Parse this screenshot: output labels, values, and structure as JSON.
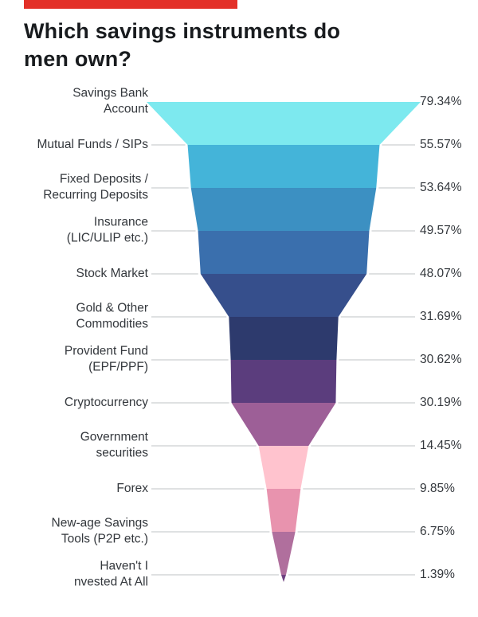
{
  "title": "Which savings instruments do\nmen own?",
  "top_bar": {
    "color": "#e33028"
  },
  "leader_line_color": "#bfc3c6",
  "chart_data": {
    "type": "funnel",
    "title": "Which savings instruments do men own?",
    "unit": "%",
    "legend": "none",
    "value_range": [
      0,
      79.34
    ],
    "categories": [
      "Savings Bank Account",
      "Mutual Funds / SIPs",
      "Fixed Deposits / Recurring Deposits",
      "Insurance (LIC/ULIP etc.)",
      "Stock Market",
      "Gold & Other Commodities",
      "Provident Fund (EPF/PPF)",
      "Cryptocurrency",
      "Government securities",
      "Forex",
      "New-age Savings Tools (P2P etc.)",
      "Haven't Invested At All"
    ],
    "values": [
      79.34,
      55.57,
      53.64,
      49.57,
      48.07,
      31.69,
      30.62,
      30.19,
      14.45,
      9.85,
      6.75,
      1.39
    ],
    "rows": [
      {
        "label": "Savings Bank\nAccount",
        "value": 79.34,
        "display": "79.34%",
        "color": "#7de9ef"
      },
      {
        "label": "Mutual Funds / SIPs",
        "value": 55.57,
        "display": "55.57%",
        "color": "#44b4d9"
      },
      {
        "label": "Fixed Deposits /\nRecurring Deposits",
        "value": 53.64,
        "display": "53.64%",
        "color": "#3c90c2"
      },
      {
        "label": "Insurance\n(LIC/ULIP etc.)",
        "value": 49.57,
        "display": "49.57%",
        "color": "#3a6fad"
      },
      {
        "label": "Stock Market",
        "value": 48.07,
        "display": "48.07%",
        "color": "#364f8c"
      },
      {
        "label": "Gold & Other\nCommodities",
        "value": 31.69,
        "display": "31.69%",
        "color": "#2d3a6d"
      },
      {
        "label": "Provident Fund\n(EPF/PPF)",
        "value": 30.62,
        "display": "30.62%",
        "color": "#5b3d7d"
      },
      {
        "label": "Cryptocurrency",
        "value": 30.19,
        "display": "30.19%",
        "color": "#9d5f97"
      },
      {
        "label": "Government\nsecurities",
        "value": 14.45,
        "display": "14.45%",
        "color": "#ffc3ce"
      },
      {
        "label": "Forex",
        "value": 9.85,
        "display": "9.85%",
        "color": "#e893ae"
      },
      {
        "label": "New-age Savings\nTools (P2P etc.)",
        "value": 6.75,
        "display": "6.75%",
        "color": "#b06f9d"
      },
      {
        "label": "Haven't I\nnvested At All",
        "value": 1.39,
        "display": "1.39%",
        "color": "#6f4180"
      }
    ]
  }
}
